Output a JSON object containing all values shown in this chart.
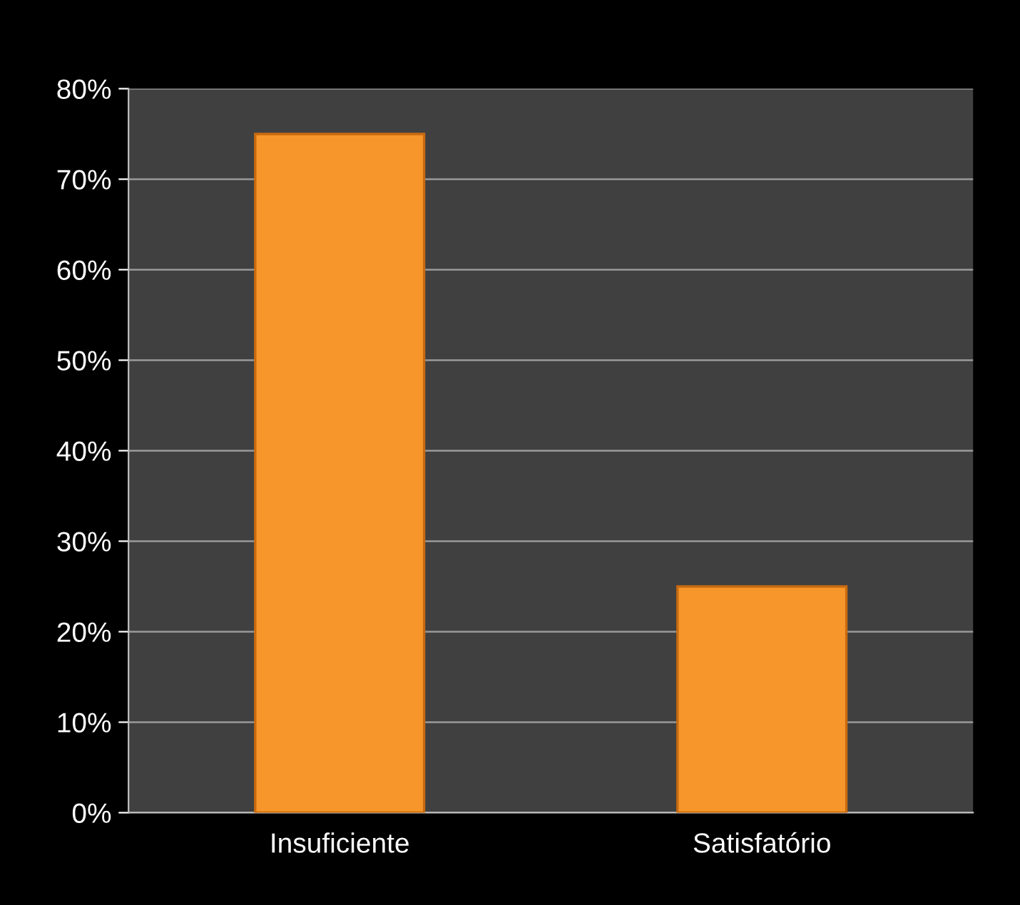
{
  "chart_data": {
    "type": "bar",
    "categories": [
      "Insuficiente",
      "Satisfatório"
    ],
    "values": [
      75,
      25
    ],
    "color": "#f7962a",
    "ylim": [
      0,
      80
    ],
    "yticks": [
      {
        "value": 0,
        "label": "0%"
      },
      {
        "value": 10,
        "label": "10%"
      },
      {
        "value": 20,
        "label": "20%"
      },
      {
        "value": 30,
        "label": "30%"
      },
      {
        "value": 40,
        "label": "40%"
      },
      {
        "value": 50,
        "label": "50%"
      },
      {
        "value": 60,
        "label": "60%"
      },
      {
        "value": 70,
        "label": "70%"
      },
      {
        "value": 80,
        "label": "80%"
      }
    ],
    "grid": "y",
    "legend": false
  }
}
